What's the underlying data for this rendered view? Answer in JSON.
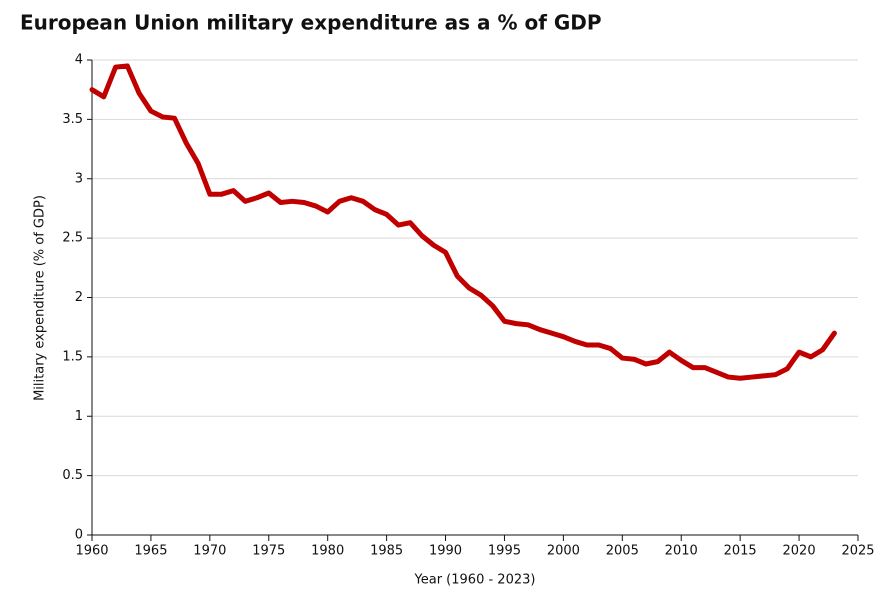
{
  "chart_data": {
    "type": "line",
    "title": "European Union military expenditure as a % of GDP",
    "x_label": "Year (1960 - 2023)",
    "y_label": "Military expenditure (% of GDP)",
    "x": [
      1960,
      1961,
      1962,
      1963,
      1964,
      1965,
      1966,
      1967,
      1968,
      1969,
      1970,
      1971,
      1972,
      1973,
      1974,
      1975,
      1976,
      1977,
      1978,
      1979,
      1980,
      1981,
      1982,
      1983,
      1984,
      1985,
      1986,
      1987,
      1988,
      1989,
      1990,
      1991,
      1992,
      1993,
      1994,
      1995,
      1996,
      1997,
      1998,
      1999,
      2000,
      2001,
      2002,
      2003,
      2004,
      2005,
      2006,
      2007,
      2008,
      2009,
      2010,
      2011,
      2012,
      2013,
      2014,
      2015,
      2016,
      2017,
      2018,
      2019,
      2020,
      2021,
      2022,
      2023
    ],
    "series": [
      {
        "color": "#c00000",
        "values": [
          3.75,
          3.69,
          3.94,
          3.95,
          3.72,
          3.57,
          3.52,
          3.51,
          3.3,
          3.13,
          2.87,
          2.87,
          2.9,
          2.81,
          2.84,
          2.88,
          2.8,
          2.81,
          2.8,
          2.77,
          2.72,
          2.81,
          2.84,
          2.81,
          2.74,
          2.7,
          2.61,
          2.63,
          2.52,
          2.44,
          2.38,
          2.18,
          2.08,
          2.02,
          1.93,
          1.8,
          1.78,
          1.77,
          1.73,
          1.7,
          1.67,
          1.63,
          1.6,
          1.6,
          1.57,
          1.49,
          1.48,
          1.44,
          1.46,
          1.54,
          1.47,
          1.41,
          1.41,
          1.37,
          1.33,
          1.32,
          1.33,
          1.34,
          1.35,
          1.4,
          1.54,
          1.5,
          1.56,
          1.7
        ]
      }
    ],
    "xlim": [
      1960,
      2025
    ],
    "xticks": [
      1960,
      1965,
      1970,
      1975,
      1980,
      1985,
      1990,
      1995,
      2000,
      2005,
      2010,
      2015,
      2020,
      2025
    ],
    "ylim": [
      0,
      4
    ],
    "yticks": [
      0,
      0.5,
      1,
      1.5,
      2,
      2.5,
      3,
      3.5,
      4
    ],
    "grid": true
  }
}
